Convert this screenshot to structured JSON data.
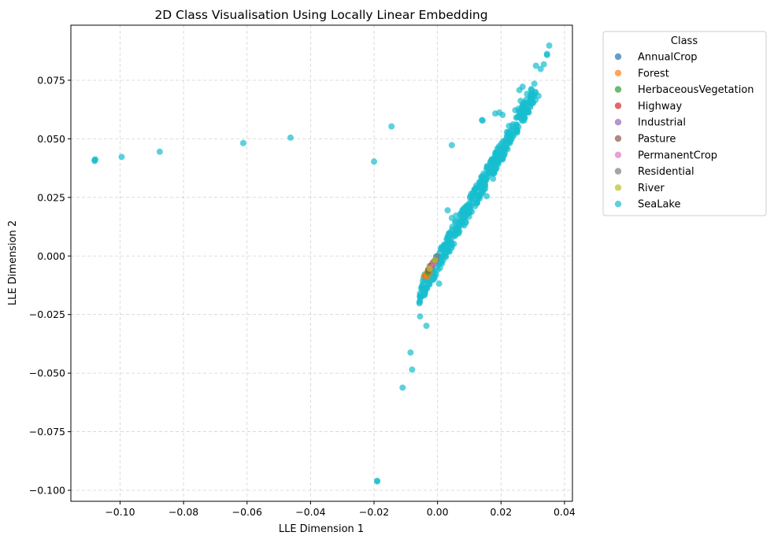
{
  "chart_data": {
    "type": "scatter",
    "title": "2D Class Visualisation Using Locally Linear Embedding",
    "xlabel": "LLE Dimension 1",
    "ylabel": "LLE Dimension 2",
    "xlim": [
      -0.1155,
      0.0425
    ],
    "ylim": [
      -0.1047,
      0.0985
    ],
    "xticks": [
      -0.1,
      -0.08,
      -0.06,
      -0.04,
      -0.02,
      0.0,
      0.02,
      0.04
    ],
    "xtick_labels": [
      "−0.10",
      "−0.08",
      "−0.06",
      "−0.04",
      "−0.02",
      "0.00",
      "0.02",
      "0.04"
    ],
    "yticks": [
      -0.1,
      -0.075,
      -0.05,
      -0.025,
      0.0,
      0.025,
      0.05,
      0.075
    ],
    "ytick_labels": [
      "−0.100",
      "−0.075",
      "−0.050",
      "−0.025",
      "0.000",
      "0.025",
      "0.050",
      "0.075"
    ],
    "grid": true,
    "legend": {
      "title": "Class",
      "placement": "outside-top-right"
    },
    "series": [
      {
        "name": "AnnualCrop",
        "color": "#1f77b4",
        "points": [
          [
            -0.0038,
            -0.0085
          ],
          [
            -0.003,
            -0.0065
          ],
          [
            -0.002,
            -0.004
          ]
        ]
      },
      {
        "name": "Forest",
        "color": "#ff7f0e",
        "points": [
          [
            -0.0042,
            -0.0085
          ],
          [
            -0.0035,
            -0.0075
          ],
          [
            -0.003,
            -0.006
          ],
          [
            -0.0025,
            -0.005
          ],
          [
            -0.002,
            -0.004
          ],
          [
            -0.0015,
            -0.003
          ],
          [
            -0.0032,
            -0.009
          ],
          [
            -0.0025,
            -0.007
          ]
        ]
      },
      {
        "name": "HerbaceousVegetation",
        "color": "#2ca02c",
        "points": [
          [
            -0.003,
            -0.007
          ],
          [
            -0.002,
            -0.005
          ]
        ]
      },
      {
        "name": "Highway",
        "color": "#d62728",
        "points": [
          [
            -0.002,
            -0.0045
          ],
          [
            -0.001,
            -0.0025
          ]
        ]
      },
      {
        "name": "Industrial",
        "color": "#9467bd",
        "points": [
          [
            -0.0015,
            -0.0035
          ],
          [
            -0.0005,
            -0.0015
          ]
        ]
      },
      {
        "name": "Pasture",
        "color": "#8c564b",
        "points": [
          [
            -0.0028,
            -0.006
          ],
          [
            -0.0018,
            -0.004
          ]
        ]
      },
      {
        "name": "PermanentCrop",
        "color": "#e377c2",
        "points": [
          [
            -0.0022,
            -0.005
          ],
          [
            -0.0012,
            -0.003
          ]
        ]
      },
      {
        "name": "Residential",
        "color": "#7f7f7f",
        "points": [
          [
            -0.001,
            -0.002
          ],
          [
            0.0,
            0.0
          ]
        ]
      },
      {
        "name": "River",
        "color": "#bcbd22",
        "points": [
          [
            -0.0025,
            -0.0055
          ],
          [
            -0.0008,
            -0.0018
          ]
        ]
      },
      {
        "name": "SeaLake",
        "color": "#17becf",
        "points": [
          [
            -0.108,
            0.041
          ],
          [
            -0.108,
            0.0405
          ],
          [
            -0.1078,
            0.0412
          ],
          [
            -0.0995,
            0.0423
          ],
          [
            -0.0875,
            0.0445
          ],
          [
            -0.0612,
            0.0482
          ],
          [
            -0.0463,
            0.0505
          ],
          [
            -0.02,
            0.0403
          ],
          [
            -0.0145,
            0.0553
          ],
          [
            0.0045,
            0.0473
          ],
          [
            -0.019,
            -0.096
          ],
          [
            -0.019,
            -0.0962
          ],
          [
            -0.011,
            -0.0562
          ],
          [
            -0.0085,
            -0.0412
          ],
          [
            -0.008,
            -0.0485
          ],
          [
            -0.0055,
            -0.0258
          ],
          [
            -0.0035,
            -0.0298
          ],
          [
            0.0005,
            -0.0118
          ],
          [
            0.0015,
            -0.0005
          ],
          [
            0.0022,
            0.001
          ],
          [
            0.0032,
            0.0195
          ],
          [
            0.0045,
            0.0162
          ],
          [
            0.0058,
            0.0172
          ],
          [
            0.007,
            0.0148
          ],
          [
            0.0095,
            0.0192
          ],
          [
            0.0102,
            0.0215
          ],
          [
            0.0132,
            0.0262
          ],
          [
            0.0138,
            0.0298
          ],
          [
            0.0152,
            0.0325
          ],
          [
            0.0155,
            0.0255
          ],
          [
            0.0175,
            0.033
          ],
          [
            0.0186,
            0.0375
          ],
          [
            0.0205,
            0.0412
          ],
          [
            0.0178,
            0.0355
          ],
          [
            0.0168,
            0.0405
          ],
          [
            0.0175,
            0.0395
          ],
          [
            0.0182,
            0.0608
          ],
          [
            0.0195,
            0.0612
          ],
          [
            0.0205,
            0.0602
          ],
          [
            0.0225,
            0.0555
          ],
          [
            0.0238,
            0.0562
          ],
          [
            0.0245,
            0.0622
          ],
          [
            0.0255,
            0.0628
          ],
          [
            0.0262,
            0.0662
          ],
          [
            0.027,
            0.0652
          ],
          [
            0.0258,
            0.0708
          ],
          [
            0.0268,
            0.0722
          ],
          [
            0.0282,
            0.0692
          ],
          [
            0.0295,
            0.0712
          ],
          [
            0.0305,
            0.0735
          ],
          [
            0.0318,
            0.0683
          ],
          [
            0.031,
            0.0812
          ],
          [
            0.0325,
            0.0798
          ],
          [
            0.0335,
            0.0818
          ],
          [
            0.0345,
            0.0858
          ],
          [
            0.0345,
            0.0862
          ],
          [
            0.0352,
            0.0898
          ],
          [
            0.022,
            0.051
          ],
          [
            0.0208,
            0.0468
          ],
          [
            0.028,
            0.0668
          ],
          [
            0.0295,
            0.065
          ],
          [
            0.0248,
            0.059
          ],
          [
            0.014,
            0.058
          ],
          [
            0.0142,
            0.0578
          ]
        ]
      }
    ],
    "sealake_band": {
      "lower": {
        "from": [
          -0.006,
          -0.0215
        ],
        "to": [
          0.032,
          0.069
        ]
      },
      "upper": {
        "from": [
          -0.005,
          -0.01
        ],
        "to": [
          0.03,
          0.072
        ]
      },
      "density": 420
    }
  }
}
